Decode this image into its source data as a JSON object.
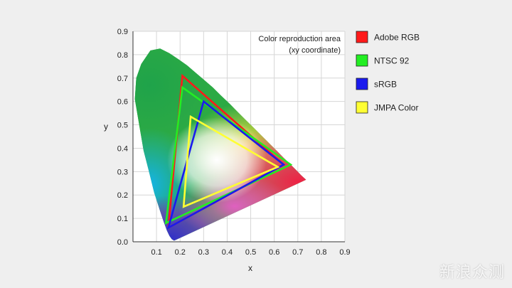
{
  "chart_data": {
    "type": "scatter",
    "xlabel": "x",
    "ylabel": "y",
    "xlim": [
      0,
      0.9
    ],
    "ylim": [
      0,
      0.9
    ],
    "x_ticks": [
      "0.1",
      "0.2",
      "0.3",
      "0.4",
      "0.5",
      "0.6",
      "0.7",
      "0.8",
      "0.9"
    ],
    "y_ticks": [
      "0.0",
      "0.1",
      "0.2",
      "0.3",
      "0.4",
      "0.5",
      "0.6",
      "0.7",
      "0.8",
      "0.9"
    ],
    "grid": true,
    "annotation": [
      "Color reproduction area",
      "(xy coordinate)"
    ],
    "legend_position": "right",
    "locus": [
      [
        0.175,
        0.005
      ],
      [
        0.165,
        0.011
      ],
      [
        0.155,
        0.025
      ],
      [
        0.144,
        0.048
      ],
      [
        0.13,
        0.087
      ],
      [
        0.112,
        0.141
      ],
      [
        0.09,
        0.21
      ],
      [
        0.068,
        0.3
      ],
      [
        0.045,
        0.39
      ],
      [
        0.023,
        0.52
      ],
      [
        0.008,
        0.61
      ],
      [
        0.014,
        0.7
      ],
      [
        0.035,
        0.76
      ],
      [
        0.074,
        0.818
      ],
      [
        0.115,
        0.826
      ],
      [
        0.155,
        0.806
      ],
      [
        0.194,
        0.78
      ],
      [
        0.23,
        0.754
      ],
      [
        0.266,
        0.723
      ],
      [
        0.302,
        0.692
      ],
      [
        0.339,
        0.66
      ],
      [
        0.374,
        0.625
      ],
      [
        0.411,
        0.59
      ],
      [
        0.444,
        0.556
      ],
      [
        0.48,
        0.52
      ],
      [
        0.513,
        0.487
      ],
      [
        0.546,
        0.454
      ],
      [
        0.58,
        0.42
      ],
      [
        0.612,
        0.388
      ],
      [
        0.641,
        0.358
      ],
      [
        0.67,
        0.33
      ],
      [
        0.695,
        0.305
      ],
      [
        0.715,
        0.284
      ],
      [
        0.735,
        0.265
      ]
    ],
    "series": [
      {
        "name": "Adobe RGB",
        "color": "#ff1a1a",
        "points": [
          [
            0.64,
            0.33
          ],
          [
            0.21,
            0.71
          ],
          [
            0.15,
            0.06
          ]
        ]
      },
      {
        "name": "NTSC 92",
        "color": "#22ee22",
        "points": [
          [
            0.67,
            0.33
          ],
          [
            0.21,
            0.66
          ],
          [
            0.14,
            0.08
          ]
        ]
      },
      {
        "name": "sRGB",
        "color": "#1a1aee",
        "points": [
          [
            0.64,
            0.33
          ],
          [
            0.3,
            0.6
          ],
          [
            0.15,
            0.06
          ]
        ]
      },
      {
        "name": "JMPA Color",
        "color": "#ffff33",
        "points": [
          [
            0.615,
            0.32
          ],
          [
            0.245,
            0.535
          ],
          [
            0.215,
            0.15
          ]
        ]
      }
    ]
  },
  "watermark": "新浪众测"
}
